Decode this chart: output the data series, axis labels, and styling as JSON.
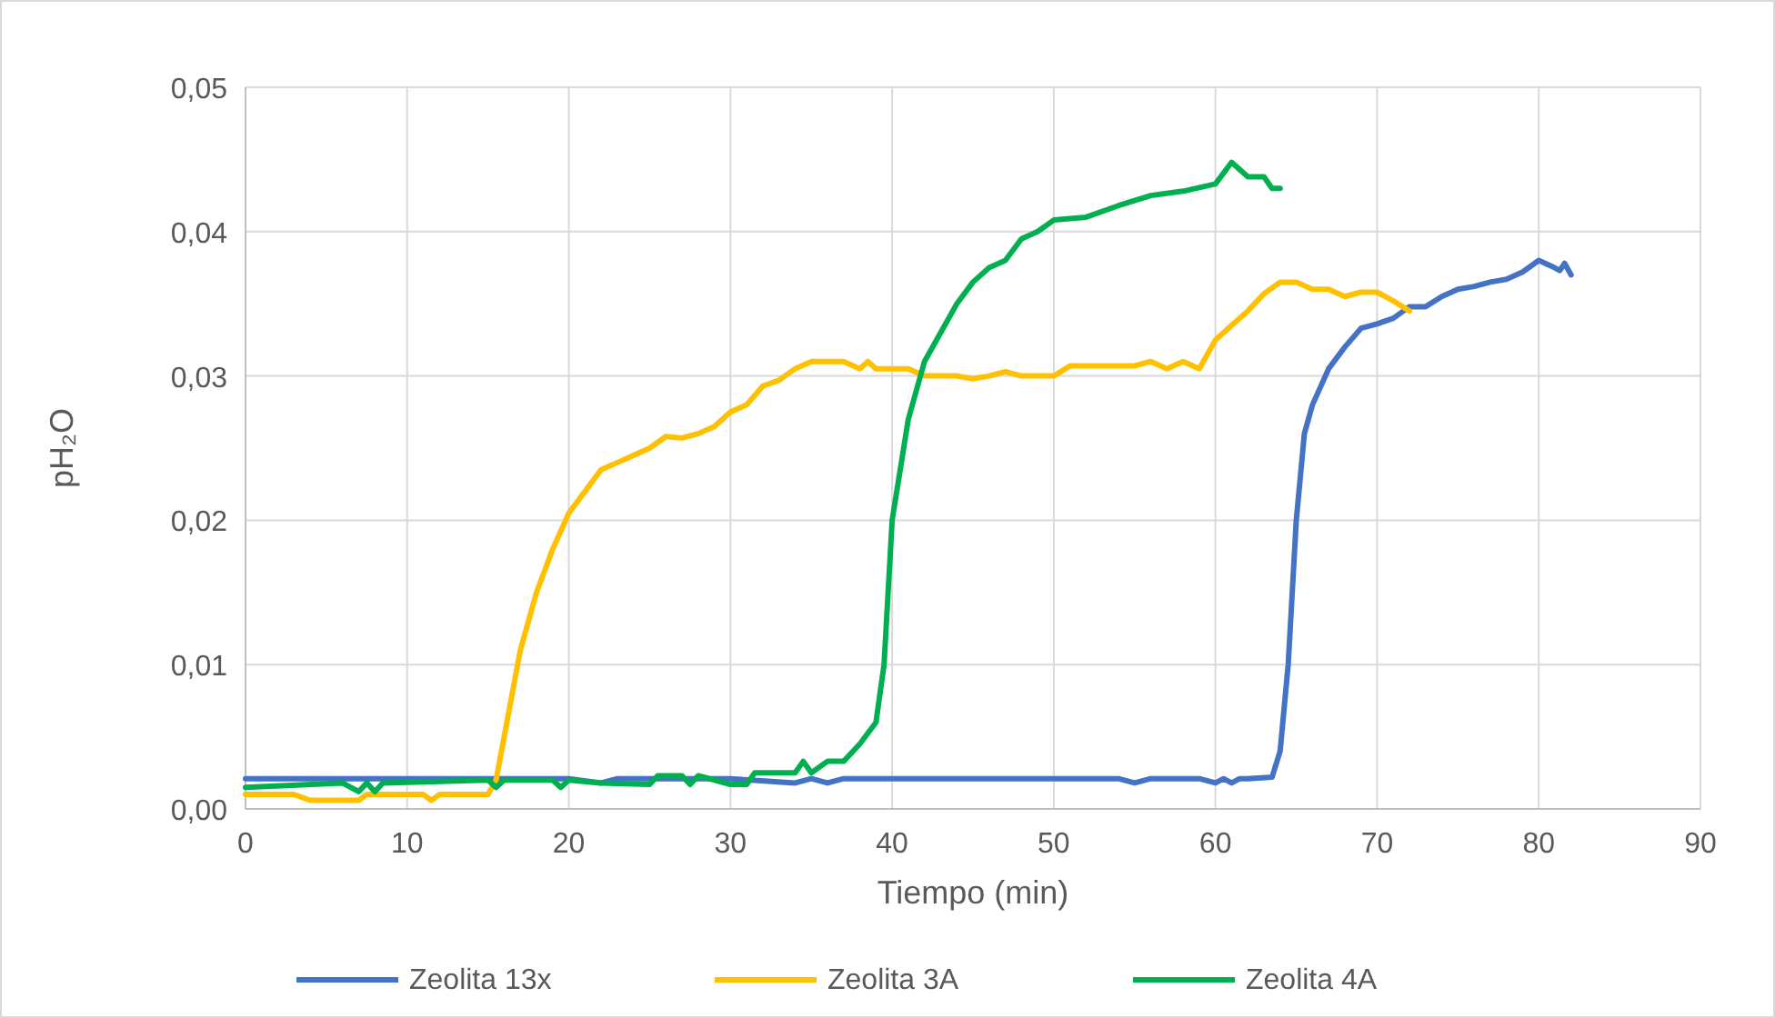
{
  "chart_data": {
    "type": "line",
    "xlabel": "Tiempo (min)",
    "ylabel": "pH₂O",
    "xlim": [
      0,
      90
    ],
    "xticks": [
      0,
      10,
      20,
      30,
      40,
      50,
      60,
      70,
      80,
      90
    ],
    "ylim": [
      0,
      0.05
    ],
    "yticks": [
      {
        "value": 0,
        "label": "0,00"
      },
      {
        "value": 0.01,
        "label": "0,01"
      },
      {
        "value": 0.02,
        "label": "0,02"
      },
      {
        "value": 0.03,
        "label": "0,03"
      },
      {
        "value": 0.04,
        "label": "0,04"
      },
      {
        "value": 0.05,
        "label": "0,05"
      }
    ],
    "grid": true,
    "legend": "bottom",
    "marker": "none",
    "line_style": "solid",
    "series": [
      {
        "name": "Zeolita 13x",
        "color": "#4472c4",
        "x": [
          0,
          10,
          20,
          22,
          23,
          30,
          34,
          35,
          36,
          37,
          40,
          44,
          45,
          50,
          54,
          55,
          56,
          59,
          60,
          60.5,
          61,
          61.5,
          62,
          63.5,
          64,
          64.5,
          65,
          65.5,
          66,
          67,
          68,
          69,
          70,
          71,
          72,
          73,
          74,
          75,
          76,
          77,
          78,
          79,
          80,
          80.8,
          81.3,
          81.6,
          82
        ],
        "values": [
          0.0021,
          0.0021,
          0.0021,
          0.0018,
          0.0021,
          0.0021,
          0.0018,
          0.0021,
          0.0018,
          0.0021,
          0.0021,
          0.0021,
          0.0021,
          0.0021,
          0.0021,
          0.0018,
          0.0021,
          0.0021,
          0.0018,
          0.0021,
          0.0018,
          0.0021,
          0.0021,
          0.0022,
          0.004,
          0.01,
          0.02,
          0.026,
          0.028,
          0.0305,
          0.032,
          0.0333,
          0.0336,
          0.034,
          0.0348,
          0.0348,
          0.0355,
          0.036,
          0.0362,
          0.0365,
          0.0367,
          0.0372,
          0.038,
          0.0376,
          0.0373,
          0.0378,
          0.037
        ]
      },
      {
        "name": "Zeolita 3A",
        "color": "#ffc000",
        "x": [
          0,
          3,
          4,
          7,
          7.5,
          11,
          11.5,
          12,
          15,
          15.5,
          16,
          17,
          18,
          19,
          20,
          21,
          22,
          23,
          24,
          25,
          26,
          27,
          28,
          29,
          30,
          31,
          32,
          33,
          34,
          35,
          36,
          37,
          38,
          38.5,
          39,
          40,
          41,
          42,
          44,
          45,
          46,
          47,
          48,
          50,
          51,
          55,
          56,
          57,
          58,
          59,
          60,
          61,
          62,
          63,
          64,
          65,
          66,
          67,
          68,
          69,
          70,
          71,
          72
        ],
        "values": [
          0.001,
          0.001,
          0.0006,
          0.0006,
          0.001,
          0.001,
          0.0006,
          0.001,
          0.001,
          0.002,
          0.005,
          0.011,
          0.015,
          0.018,
          0.0205,
          0.022,
          0.0235,
          0.024,
          0.0245,
          0.025,
          0.0258,
          0.0257,
          0.026,
          0.0265,
          0.0275,
          0.028,
          0.0293,
          0.0297,
          0.0305,
          0.031,
          0.031,
          0.031,
          0.0305,
          0.031,
          0.0305,
          0.0305,
          0.0305,
          0.03,
          0.03,
          0.0298,
          0.03,
          0.0303,
          0.03,
          0.03,
          0.0307,
          0.0307,
          0.031,
          0.0305,
          0.031,
          0.0305,
          0.0325,
          0.0335,
          0.0345,
          0.0357,
          0.0365,
          0.0365,
          0.036,
          0.036,
          0.0355,
          0.0358,
          0.0358,
          0.0352,
          0.0345
        ]
      },
      {
        "name": "Zeolita 4A",
        "color": "#00b050",
        "x": [
          0,
          6,
          7,
          7.5,
          8,
          8.5,
          15,
          15.5,
          16,
          19,
          19.5,
          20,
          22,
          25,
          25.5,
          27,
          27.5,
          28,
          30,
          31,
          31.5,
          34,
          34.5,
          35,
          36,
          37,
          38,
          39,
          39.5,
          40,
          41,
          42,
          43,
          44,
          45,
          46,
          47,
          48,
          49,
          50,
          52,
          54,
          56,
          58,
          60,
          61,
          62,
          63,
          63.5,
          64
        ],
        "values": [
          0.0015,
          0.0018,
          0.0012,
          0.0018,
          0.0012,
          0.0018,
          0.002,
          0.0015,
          0.002,
          0.002,
          0.0015,
          0.002,
          0.0018,
          0.0017,
          0.0023,
          0.0023,
          0.0017,
          0.0023,
          0.0017,
          0.0017,
          0.0025,
          0.0025,
          0.0033,
          0.0025,
          0.0033,
          0.0033,
          0.0045,
          0.006,
          0.01,
          0.02,
          0.027,
          0.031,
          0.033,
          0.035,
          0.0365,
          0.0375,
          0.038,
          0.0395,
          0.04,
          0.0408,
          0.041,
          0.0418,
          0.0425,
          0.0428,
          0.0433,
          0.0448,
          0.0438,
          0.0438,
          0.043,
          0.043
        ]
      }
    ]
  }
}
